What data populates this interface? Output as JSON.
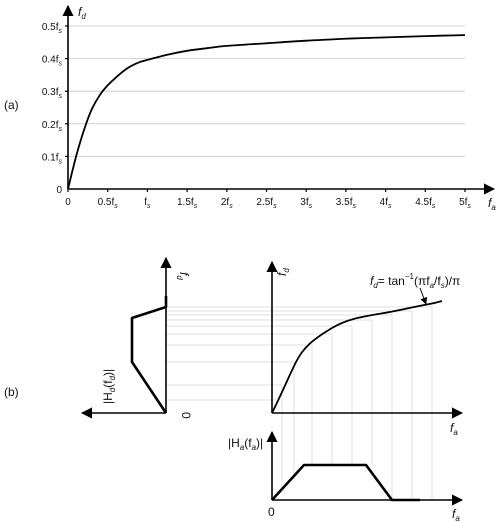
{
  "panel_a": {
    "label": "(a)",
    "y_axis_label": "f",
    "y_axis_sub": "d",
    "x_axis_label": "f",
    "x_axis_sub": "a",
    "x_ticks": [
      {
        "value": 0,
        "label": "0",
        "sub": ""
      },
      {
        "value": 0.5,
        "label": "0.5f",
        "sub": "s"
      },
      {
        "value": 1,
        "label": "f",
        "sub": "s"
      },
      {
        "value": 1.5,
        "label": "1.5f",
        "sub": "s"
      },
      {
        "value": 2,
        "label": "2f",
        "sub": "s"
      },
      {
        "value": 2.5,
        "label": "2.5f",
        "sub": "s"
      },
      {
        "value": 3,
        "label": "3f",
        "sub": "s"
      },
      {
        "value": 3.5,
        "label": "3.5f",
        "sub": "s"
      },
      {
        "value": 4,
        "label": "4f",
        "sub": "s"
      },
      {
        "value": 4.5,
        "label": "4.5f",
        "sub": "s"
      },
      {
        "value": 5,
        "label": "5f",
        "sub": "s"
      }
    ],
    "y_ticks": [
      {
        "value": 0,
        "label": "0",
        "sub": ""
      },
      {
        "value": 0.1,
        "label": "0.1f",
        "sub": "s"
      },
      {
        "value": 0.2,
        "label": "0.2f",
        "sub": "s"
      },
      {
        "value": 0.3,
        "label": "0.3f",
        "sub": "s"
      },
      {
        "value": 0.4,
        "label": "0.4f",
        "sub": "s"
      },
      {
        "value": 0.5,
        "label": "0.5f",
        "sub": "s"
      }
    ]
  },
  "panel_b": {
    "label": "(b)",
    "left_axis_label": "f",
    "left_axis_sub": "d",
    "left_y_label": "|H",
    "left_y_label_sub": "d",
    "left_y_label_arg": "(f",
    "left_y_label_arg_sub": "d",
    "left_y_label_end": ")|",
    "zero": "0",
    "curve_y_label": "f",
    "curve_y_sub": "d",
    "formula_lhs": "f",
    "formula_lhs_sub": "d",
    "formula_eq": "= tan",
    "formula_sup": "−1",
    "formula_arg": "(πf",
    "formula_arg_sub1": "a",
    "formula_div": "/f",
    "formula_arg_sub2": "s",
    "formula_tail": ")/π",
    "curve_x_label": "f",
    "curve_x_sub": "a",
    "bottom_y_label": "|H",
    "bottom_y_sub": "a",
    "bottom_y_arg": "(f",
    "bottom_y_arg_sub": "a",
    "bottom_y_end": ")|",
    "bottom_zero": "0",
    "bottom_x_label": "f",
    "bottom_x_sub": "a"
  },
  "chart_data": {
    "type": "line",
    "x": [
      0,
      0.1,
      0.2,
      0.3,
      0.4,
      0.5,
      0.6,
      0.7,
      0.8,
      0.9,
      1.0,
      1.25,
      1.5,
      1.75,
      2.0,
      2.5,
      3.0,
      3.5,
      4.0,
      4.5,
      5.0
    ],
    "y": [
      0,
      0.098,
      0.18,
      0.245,
      0.288,
      0.318,
      0.341,
      0.362,
      0.378,
      0.389,
      0.396,
      0.412,
      0.424,
      0.432,
      0.439,
      0.447,
      0.455,
      0.461,
      0.465,
      0.469,
      0.472
    ],
    "xlim": [
      0,
      5
    ],
    "ylim": [
      0,
      0.5
    ],
    "grid": true
  }
}
